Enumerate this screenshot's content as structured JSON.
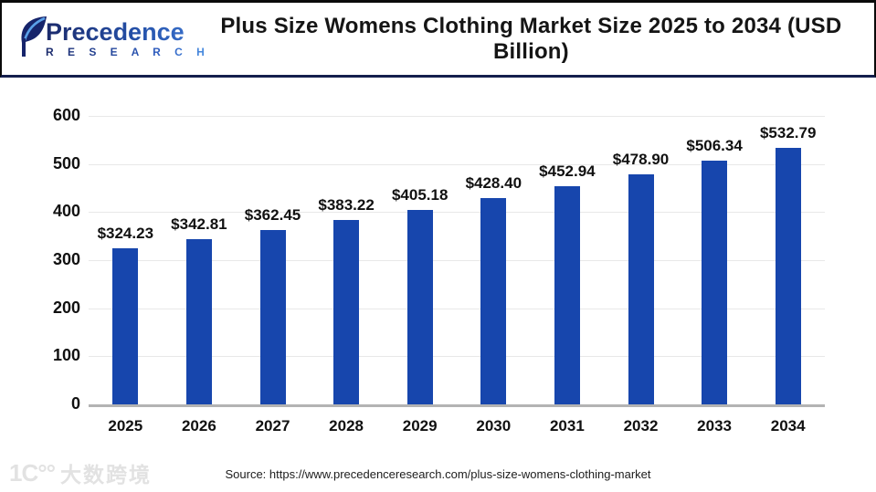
{
  "header": {
    "logo": {
      "brand": "Precedence",
      "subtitle": "R E S E A R C H"
    },
    "title": "Plus Size Womens Clothing Market Size 2025 to 2034 (USD Billion)"
  },
  "chart_data": {
    "type": "bar",
    "title": "Plus Size Womens Clothing Market Size 2025 to 2034 (USD Billion)",
    "categories": [
      "2025",
      "2026",
      "2027",
      "2028",
      "2029",
      "2030",
      "2031",
      "2032",
      "2033",
      "2034"
    ],
    "values": [
      324.23,
      342.81,
      362.45,
      383.22,
      405.18,
      428.4,
      452.94,
      478.9,
      506.34,
      532.79
    ],
    "value_prefix": "$",
    "ylim": [
      0,
      600
    ],
    "yticks": [
      0,
      100,
      200,
      300,
      400,
      500,
      600
    ],
    "xlabel": "",
    "ylabel": "",
    "grid": true,
    "legend": false,
    "bar_color": "#1746ad"
  },
  "footer": {
    "source": "Source: https://www.precedenceresearch.com/plus-size-womens-clothing-market"
  },
  "watermark": {
    "glyph": "1C°°",
    "text": "大数跨境"
  },
  "colors": {
    "bar": "#1746ad",
    "header_rule": "#141f4d",
    "grid": "#e8e8e8",
    "axis": "#b3b3b3"
  }
}
